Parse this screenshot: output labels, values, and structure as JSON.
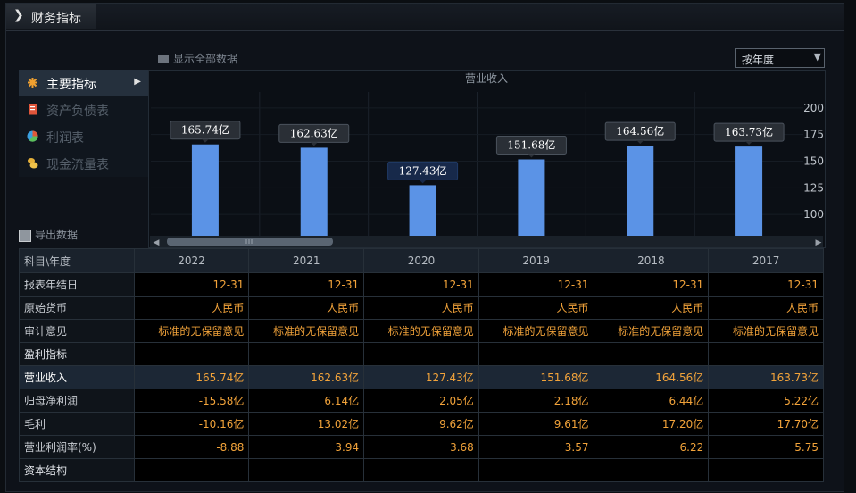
{
  "window": {
    "title": "财务指标"
  },
  "toolbar": {
    "show_all_label": "显示全部数据",
    "export_label": "导出数据"
  },
  "period_select": {
    "value": "按年度"
  },
  "sidebar": {
    "items": [
      {
        "label": "主要指标",
        "active": true,
        "icon": "asterisk-icon"
      },
      {
        "label": "资产负债表",
        "active": false,
        "icon": "document-icon"
      },
      {
        "label": "利润表",
        "active": false,
        "icon": "pie-chart-icon"
      },
      {
        "label": "现金流量表",
        "active": false,
        "icon": "coins-icon"
      }
    ]
  },
  "chart_data": {
    "type": "bar",
    "title": "营业收入",
    "categories": [
      "2022",
      "2021",
      "2020",
      "2019",
      "2018",
      "2017"
    ],
    "values": [
      165.74,
      162.63,
      127.43,
      151.68,
      164.56,
      163.73
    ],
    "data_labels": [
      "165.74亿",
      "162.63亿",
      "127.43亿",
      "151.68亿",
      "164.56亿",
      "163.73亿"
    ],
    "highlighted_index": 2,
    "y_ticks": [
      200,
      175,
      150,
      125,
      100
    ],
    "ylim": [
      80,
      220
    ],
    "bar_color": "#5b93e6",
    "label_bg": "#2a2f36",
    "label_bg_highlight": "#17294a"
  },
  "table": {
    "header_label": "科目\\年度",
    "years": [
      "2022",
      "2021",
      "2020",
      "2019",
      "2018",
      "2017"
    ],
    "rows": [
      {
        "label": "报表年结日",
        "values": [
          "12-31",
          "12-31",
          "12-31",
          "12-31",
          "12-31",
          "12-31"
        ]
      },
      {
        "label": "原始货币",
        "values": [
          "人民币",
          "人民币",
          "人民币",
          "人民币",
          "人民币",
          "人民币"
        ]
      },
      {
        "label": "审计意见",
        "values": [
          "标准的无保留意见",
          "标准的无保留意见",
          "标准的无保留意见",
          "标准的无保留意见",
          "标准的无保留意见",
          "标准的无保留意见"
        ]
      },
      {
        "label": "盈利指标",
        "section": true,
        "values": [
          "",
          "",
          "",
          "",
          "",
          ""
        ]
      },
      {
        "label": "营业收入",
        "highlight": true,
        "values": [
          "165.74亿",
          "162.63亿",
          "127.43亿",
          "151.68亿",
          "164.56亿",
          "163.73亿"
        ]
      },
      {
        "label": "归母净利润",
        "values": [
          "-15.58亿",
          "6.14亿",
          "2.05亿",
          "2.18亿",
          "6.44亿",
          "5.22亿"
        ]
      },
      {
        "label": "毛利",
        "values": [
          "-10.16亿",
          "13.02亿",
          "9.62亿",
          "9.61亿",
          "17.20亿",
          "17.70亿"
        ]
      },
      {
        "label": "营业利润率(%)",
        "values": [
          "-8.88",
          "3.94",
          "3.68",
          "3.57",
          "6.22",
          "5.75"
        ]
      },
      {
        "label": "资本结构",
        "section": true,
        "values": [
          "",
          "",
          "",
          "",
          "",
          ""
        ]
      }
    ]
  }
}
